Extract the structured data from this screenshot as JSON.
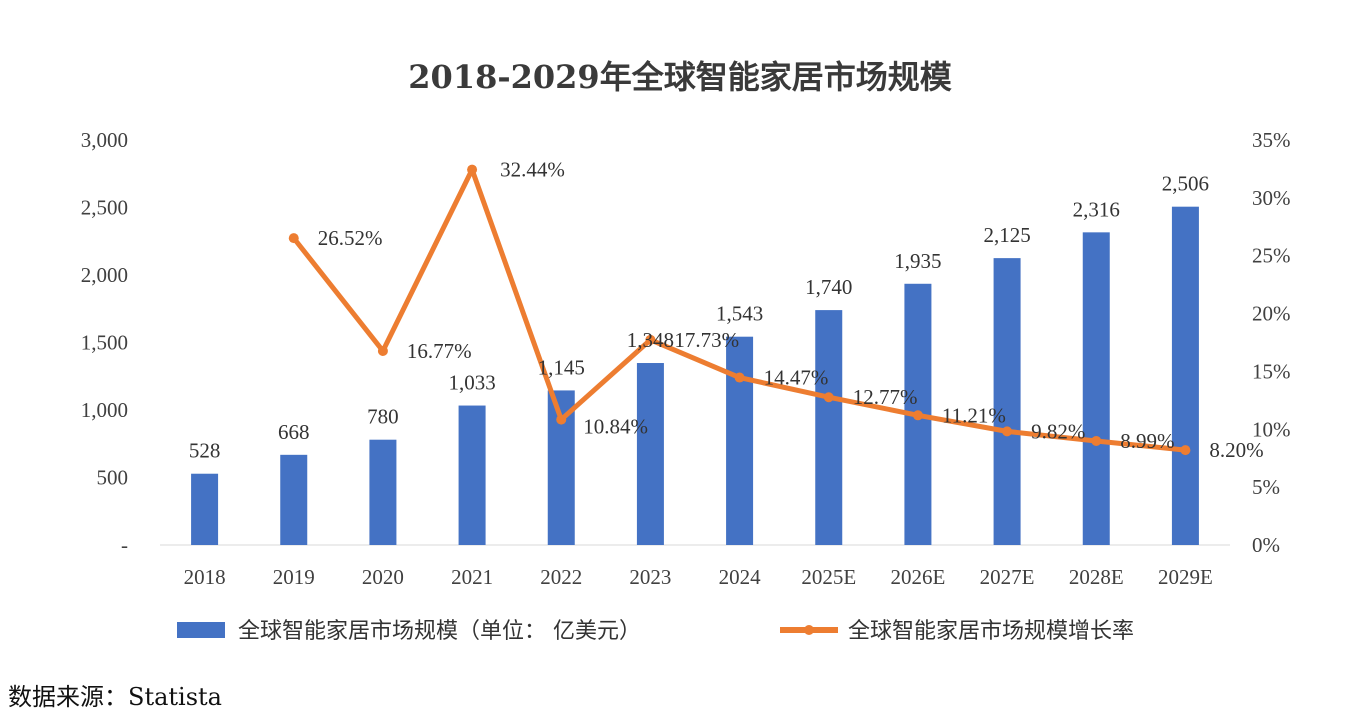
{
  "chart_data": {
    "type": "bar+line",
    "title": "2018-2029年全球智能家居市场规模",
    "categories": [
      "2018",
      "2019",
      "2020",
      "2021",
      "2022",
      "2023",
      "2024",
      "2025E",
      "2026E",
      "2027E",
      "2028E",
      "2029E"
    ],
    "series": [
      {
        "name": "全球智能家居市场规模（单位： 亿美元）",
        "type": "bar",
        "axis": "left",
        "values": [
          528,
          668,
          780,
          1033,
          1145,
          1348,
          1543,
          1740,
          1935,
          2125,
          2316,
          2506
        ],
        "labels": [
          "528",
          "668",
          "780",
          "1,033",
          "1,145",
          "1,348",
          "1,543",
          "1,740",
          "1,935",
          "2,125",
          "2,316",
          "2,506"
        ]
      },
      {
        "name": "全球智能家居市场规模增长率",
        "type": "line",
        "axis": "right",
        "values": [
          null,
          26.52,
          16.77,
          32.44,
          10.84,
          17.73,
          14.47,
          12.77,
          11.21,
          9.82,
          8.99,
          8.2
        ],
        "labels": [
          "",
          "26.52%",
          "16.77%",
          "32.44%",
          "10.84%",
          "17.73%",
          "14.47%",
          "12.77%",
          "11.21%",
          "9.82%",
          "8.99%",
          "8.20%"
        ]
      }
    ],
    "left_axis": {
      "ylim": [
        0,
        3000
      ],
      "ticks": [
        0,
        500,
        1000,
        1500,
        2000,
        2500,
        3000
      ],
      "tick_labels": [
        "-",
        "500",
        "1,000",
        "1,500",
        "2,000",
        "2,500",
        "3,000"
      ]
    },
    "right_axis": {
      "ylim": [
        0,
        35
      ],
      "ticks": [
        0,
        5,
        10,
        15,
        20,
        25,
        30,
        35
      ],
      "tick_labels": [
        "0%",
        "5%",
        "10%",
        "15%",
        "20%",
        "25%",
        "30%",
        "35%"
      ]
    },
    "legend_position": "bottom",
    "grid": false
  },
  "colors": {
    "bar": "#4472c4",
    "line": "#ed7d31"
  },
  "source": "数据来源：Statista"
}
